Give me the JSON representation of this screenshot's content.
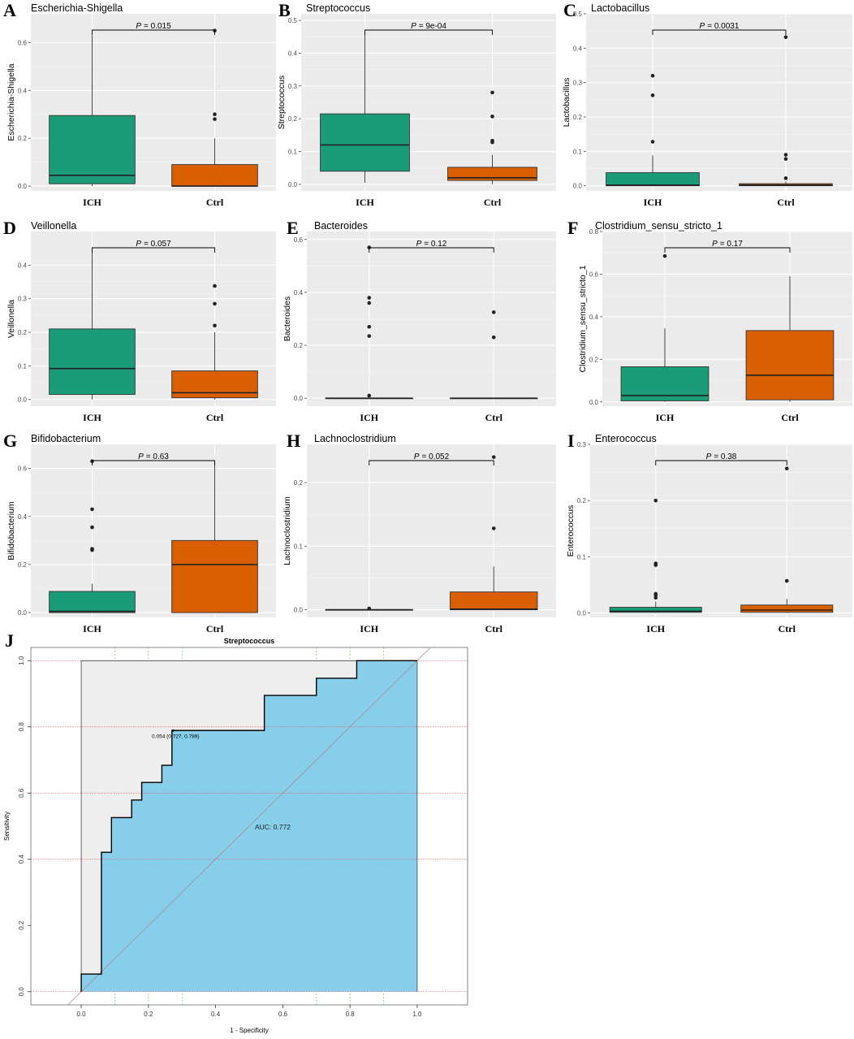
{
  "colors": {
    "ich": "#1b9b77",
    "ctrl": "#d95f02",
    "panel_bg": "#ebebeb",
    "grid": "#ffffff",
    "roc_fill": "#87ceeb",
    "roc_bg": "#eeeeee",
    "roc_grid_h": "#e06666",
    "roc_grid_v": "#66dd66"
  },
  "chart_data": [
    {
      "type": "box",
      "letter": "A",
      "title": "Escherichia-Shigella",
      "ylabel": "Escherichia-Shigella",
      "ylim": [
        -0.02,
        0.72
      ],
      "yticks": [
        0.0,
        0.2,
        0.4,
        0.6
      ],
      "ytick_labels": [
        "0.0",
        "0.2",
        "0.4",
        "0.6"
      ],
      "p_prefix": "P",
      "p_text": "= 0.015",
      "categories": [
        "ICH",
        "Ctrl"
      ],
      "boxes": [
        {
          "q1": 0.01,
          "median": 0.045,
          "q3": 0.295,
          "lo": 0.0,
          "hi": 0.63,
          "outliers": []
        },
        {
          "q1": 0.0,
          "median": 0.0,
          "q3": 0.09,
          "lo": 0.0,
          "hi": 0.2,
          "outliers": [
            0.28,
            0.3,
            0.65
          ]
        }
      ]
    },
    {
      "type": "box",
      "letter": "B",
      "title": "Streptococcus",
      "ylabel": "Streptococcus",
      "ylim": [
        -0.02,
        0.52
      ],
      "yticks": [
        0.0,
        0.1,
        0.2,
        0.3,
        0.4,
        0.5
      ],
      "ytick_labels": [
        "0.0",
        "0.1",
        "0.2",
        "0.3",
        "0.4",
        "0.5"
      ],
      "p_prefix": "P",
      "p_text": "= 9e-04",
      "categories": [
        "ICH",
        "Ctrl"
      ],
      "boxes": [
        {
          "q1": 0.04,
          "median": 0.12,
          "q3": 0.215,
          "lo": 0.005,
          "hi": 0.465,
          "outliers": []
        },
        {
          "q1": 0.012,
          "median": 0.02,
          "q3": 0.052,
          "lo": 0.0,
          "hi": 0.09,
          "outliers": [
            0.128,
            0.133,
            0.207,
            0.28
          ]
        }
      ]
    },
    {
      "type": "box",
      "letter": "C",
      "title": "Lactobacillus",
      "ylabel": "Lactobacillus",
      "ylim": [
        -0.015,
        0.5
      ],
      "yticks": [
        0.0,
        0.1,
        0.2,
        0.3,
        0.4,
        0.5
      ],
      "ytick_labels": [
        "0.0",
        "0.1",
        "0.2",
        "0.3",
        "0.4",
        "0.5"
      ],
      "p_prefix": "P",
      "p_text": "= 0.0031",
      "categories": [
        "ICH",
        "Ctrl"
      ],
      "boxes": [
        {
          "q1": 0.0,
          "median": 0.002,
          "q3": 0.038,
          "lo": 0.0,
          "hi": 0.088,
          "outliers": [
            0.128,
            0.263,
            0.32
          ]
        },
        {
          "q1": 0.0,
          "median": 0.002,
          "q3": 0.006,
          "lo": 0.0,
          "hi": 0.012,
          "outliers": [
            0.022,
            0.078,
            0.09,
            0.432
          ]
        }
      ]
    },
    {
      "type": "box",
      "letter": "D",
      "title": "Veillonella",
      "ylabel": "Veillonella",
      "ylim": [
        -0.02,
        0.5
      ],
      "yticks": [
        0.0,
        0.1,
        0.2,
        0.3,
        0.4
      ],
      "ytick_labels": [
        "0.0",
        "0.1",
        "0.2",
        "0.3",
        "0.4"
      ],
      "p_prefix": "P",
      "p_text": "= 0.057",
      "categories": [
        "ICH",
        "Ctrl"
      ],
      "boxes": [
        {
          "q1": 0.015,
          "median": 0.092,
          "q3": 0.21,
          "lo": 0.0,
          "hi": 0.45,
          "outliers": []
        },
        {
          "q1": 0.005,
          "median": 0.02,
          "q3": 0.085,
          "lo": 0.0,
          "hi": 0.2,
          "outliers": [
            0.22,
            0.285,
            0.338
          ]
        }
      ]
    },
    {
      "type": "box",
      "letter": "E",
      "title": "Bacteroides",
      "ylabel": "Bacteroides",
      "ylim": [
        -0.03,
        0.63
      ],
      "yticks": [
        0.0,
        0.2,
        0.4,
        0.6
      ],
      "ytick_labels": [
        "0.0",
        "0.2",
        "0.4",
        "0.6"
      ],
      "p_prefix": "P",
      "p_text": "= 0.12",
      "categories": [
        "ICH",
        "Ctrl"
      ],
      "boxes": [
        {
          "q1": 0.0,
          "median": 0.0,
          "q3": 0.0,
          "lo": 0.0,
          "hi": 0.0,
          "outliers": [
            0.01,
            0.235,
            0.27,
            0.36,
            0.38,
            0.57
          ]
        },
        {
          "q1": 0.0,
          "median": 0.0,
          "q3": 0.0,
          "lo": 0.0,
          "hi": 0.0,
          "outliers": [
            0.23,
            0.325
          ]
        }
      ]
    },
    {
      "type": "box",
      "letter": "F",
      "title": "Clostridium_sensu_stricto_1",
      "ylabel": "Clostridium_sensu_stricto_1",
      "ylim": [
        -0.02,
        0.8
      ],
      "yticks": [
        0.0,
        0.2,
        0.4,
        0.6,
        0.8
      ],
      "ytick_labels": [
        "0.0",
        "0.2",
        "0.4",
        "0.6",
        "0.8"
      ],
      "p_prefix": "P",
      "p_text": "= 0.17",
      "categories": [
        "ICH",
        "Ctrl"
      ],
      "boxes": [
        {
          "q1": 0.005,
          "median": 0.03,
          "q3": 0.165,
          "lo": 0.0,
          "hi": 0.345,
          "outliers": [
            0.685
          ]
        },
        {
          "q1": 0.01,
          "median": 0.125,
          "q3": 0.335,
          "lo": 0.0,
          "hi": 0.59,
          "outliers": []
        }
      ]
    },
    {
      "type": "box",
      "letter": "G",
      "title": "Bifidobacterium",
      "ylabel": "Bifidobacterium",
      "ylim": [
        -0.02,
        0.7
      ],
      "yticks": [
        0.0,
        0.2,
        0.4,
        0.6
      ],
      "ytick_labels": [
        "0.0",
        "0.2",
        "0.4",
        "0.6"
      ],
      "p_prefix": "P",
      "p_text": "= 0.63",
      "categories": [
        "ICH",
        "Ctrl"
      ],
      "boxes": [
        {
          "q1": 0.0,
          "median": 0.005,
          "q3": 0.088,
          "lo": 0.0,
          "hi": 0.12,
          "outliers": [
            0.26,
            0.265,
            0.355,
            0.43,
            0.63
          ]
        },
        {
          "q1": 0.0,
          "median": 0.2,
          "q3": 0.3,
          "lo": 0.0,
          "hi": 0.625,
          "outliers": []
        }
      ]
    },
    {
      "type": "box",
      "letter": "H",
      "title": "Lachnoclostridium",
      "ylabel": "Lachnoclostridium",
      "ylim": [
        -0.012,
        0.26
      ],
      "yticks": [
        0.0,
        0.1,
        0.2
      ],
      "ytick_labels": [
        "0.0",
        "0.1",
        "0.2"
      ],
      "p_prefix": "P",
      "p_text": "= 0.052",
      "categories": [
        "ICH",
        "Ctrl"
      ],
      "boxes": [
        {
          "q1": 0.0,
          "median": 0.0,
          "q3": 0.0,
          "lo": 0.0,
          "hi": 0.0,
          "outliers": [
            0.002
          ]
        },
        {
          "q1": 0.0,
          "median": 0.001,
          "q3": 0.028,
          "lo": 0.0,
          "hi": 0.068,
          "outliers": [
            0.128,
            0.24
          ]
        }
      ]
    },
    {
      "type": "box",
      "letter": "I",
      "title": "Enterococcus",
      "ylabel": "Enterococcus",
      "ylim": [
        -0.008,
        0.3
      ],
      "yticks": [
        0.0,
        0.1,
        0.2,
        0.3
      ],
      "ytick_labels": [
        "0.0",
        "0.1",
        "0.2",
        "0.3"
      ],
      "p_prefix": "P",
      "p_text": "= 0.38",
      "categories": [
        "ICH",
        "Ctrl"
      ],
      "boxes": [
        {
          "q1": 0.001,
          "median": 0.003,
          "q3": 0.01,
          "lo": 0.0,
          "hi": 0.02,
          "outliers": [
            0.027,
            0.032,
            0.034,
            0.085,
            0.088,
            0.2
          ]
        },
        {
          "q1": 0.001,
          "median": 0.005,
          "q3": 0.014,
          "lo": 0.0,
          "hi": 0.025,
          "outliers": [
            0.057,
            0.257
          ]
        }
      ]
    },
    {
      "type": "roc",
      "letter": "J",
      "title": "Streptococcus",
      "xlabel": "1 - Specificity",
      "ylabel": "Sensitivity",
      "xlim": [
        -0.15,
        1.15
      ],
      "ylim": [
        -0.04,
        1.04
      ],
      "xticks": [
        0.0,
        0.2,
        0.4,
        0.6,
        0.8,
        1.0
      ],
      "xtick_labels": [
        "0.0",
        "0.2",
        "0.4",
        "0.6",
        "0.8",
        "1.0"
      ],
      "yticks": [
        0.0,
        0.2,
        0.4,
        0.6,
        0.8,
        1.0
      ],
      "ytick_labels": [
        "0.0",
        "0.2",
        "0.4",
        "0.6",
        "0.8",
        "1.0"
      ],
      "hgrid": [
        0.0,
        0.4,
        0.6,
        0.8,
        1.0
      ],
      "vgrid": [
        0.1,
        0.2,
        0.3,
        0.7,
        0.8,
        0.9
      ],
      "annotation": "0.054 (0.727, 0.789)",
      "annotation_at": [
        0.273,
        0.789
      ],
      "auc_text": "AUC: 0.772",
      "auc_at": [
        0.57,
        0.49
      ],
      "roc_x": [
        0,
        0,
        0.06,
        0.06,
        0.09,
        0.09,
        0.15,
        0.15,
        0.18,
        0.18,
        0.24,
        0.24,
        0.27,
        0.27,
        0.545,
        0.545,
        0.7,
        0.7,
        0.82,
        0.82,
        1.0
      ],
      "roc_y": [
        0,
        0.053,
        0.053,
        0.421,
        0.421,
        0.526,
        0.526,
        0.579,
        0.579,
        0.632,
        0.632,
        0.684,
        0.684,
        0.789,
        0.789,
        0.895,
        0.895,
        0.947,
        0.947,
        1.0,
        1.0
      ]
    }
  ]
}
